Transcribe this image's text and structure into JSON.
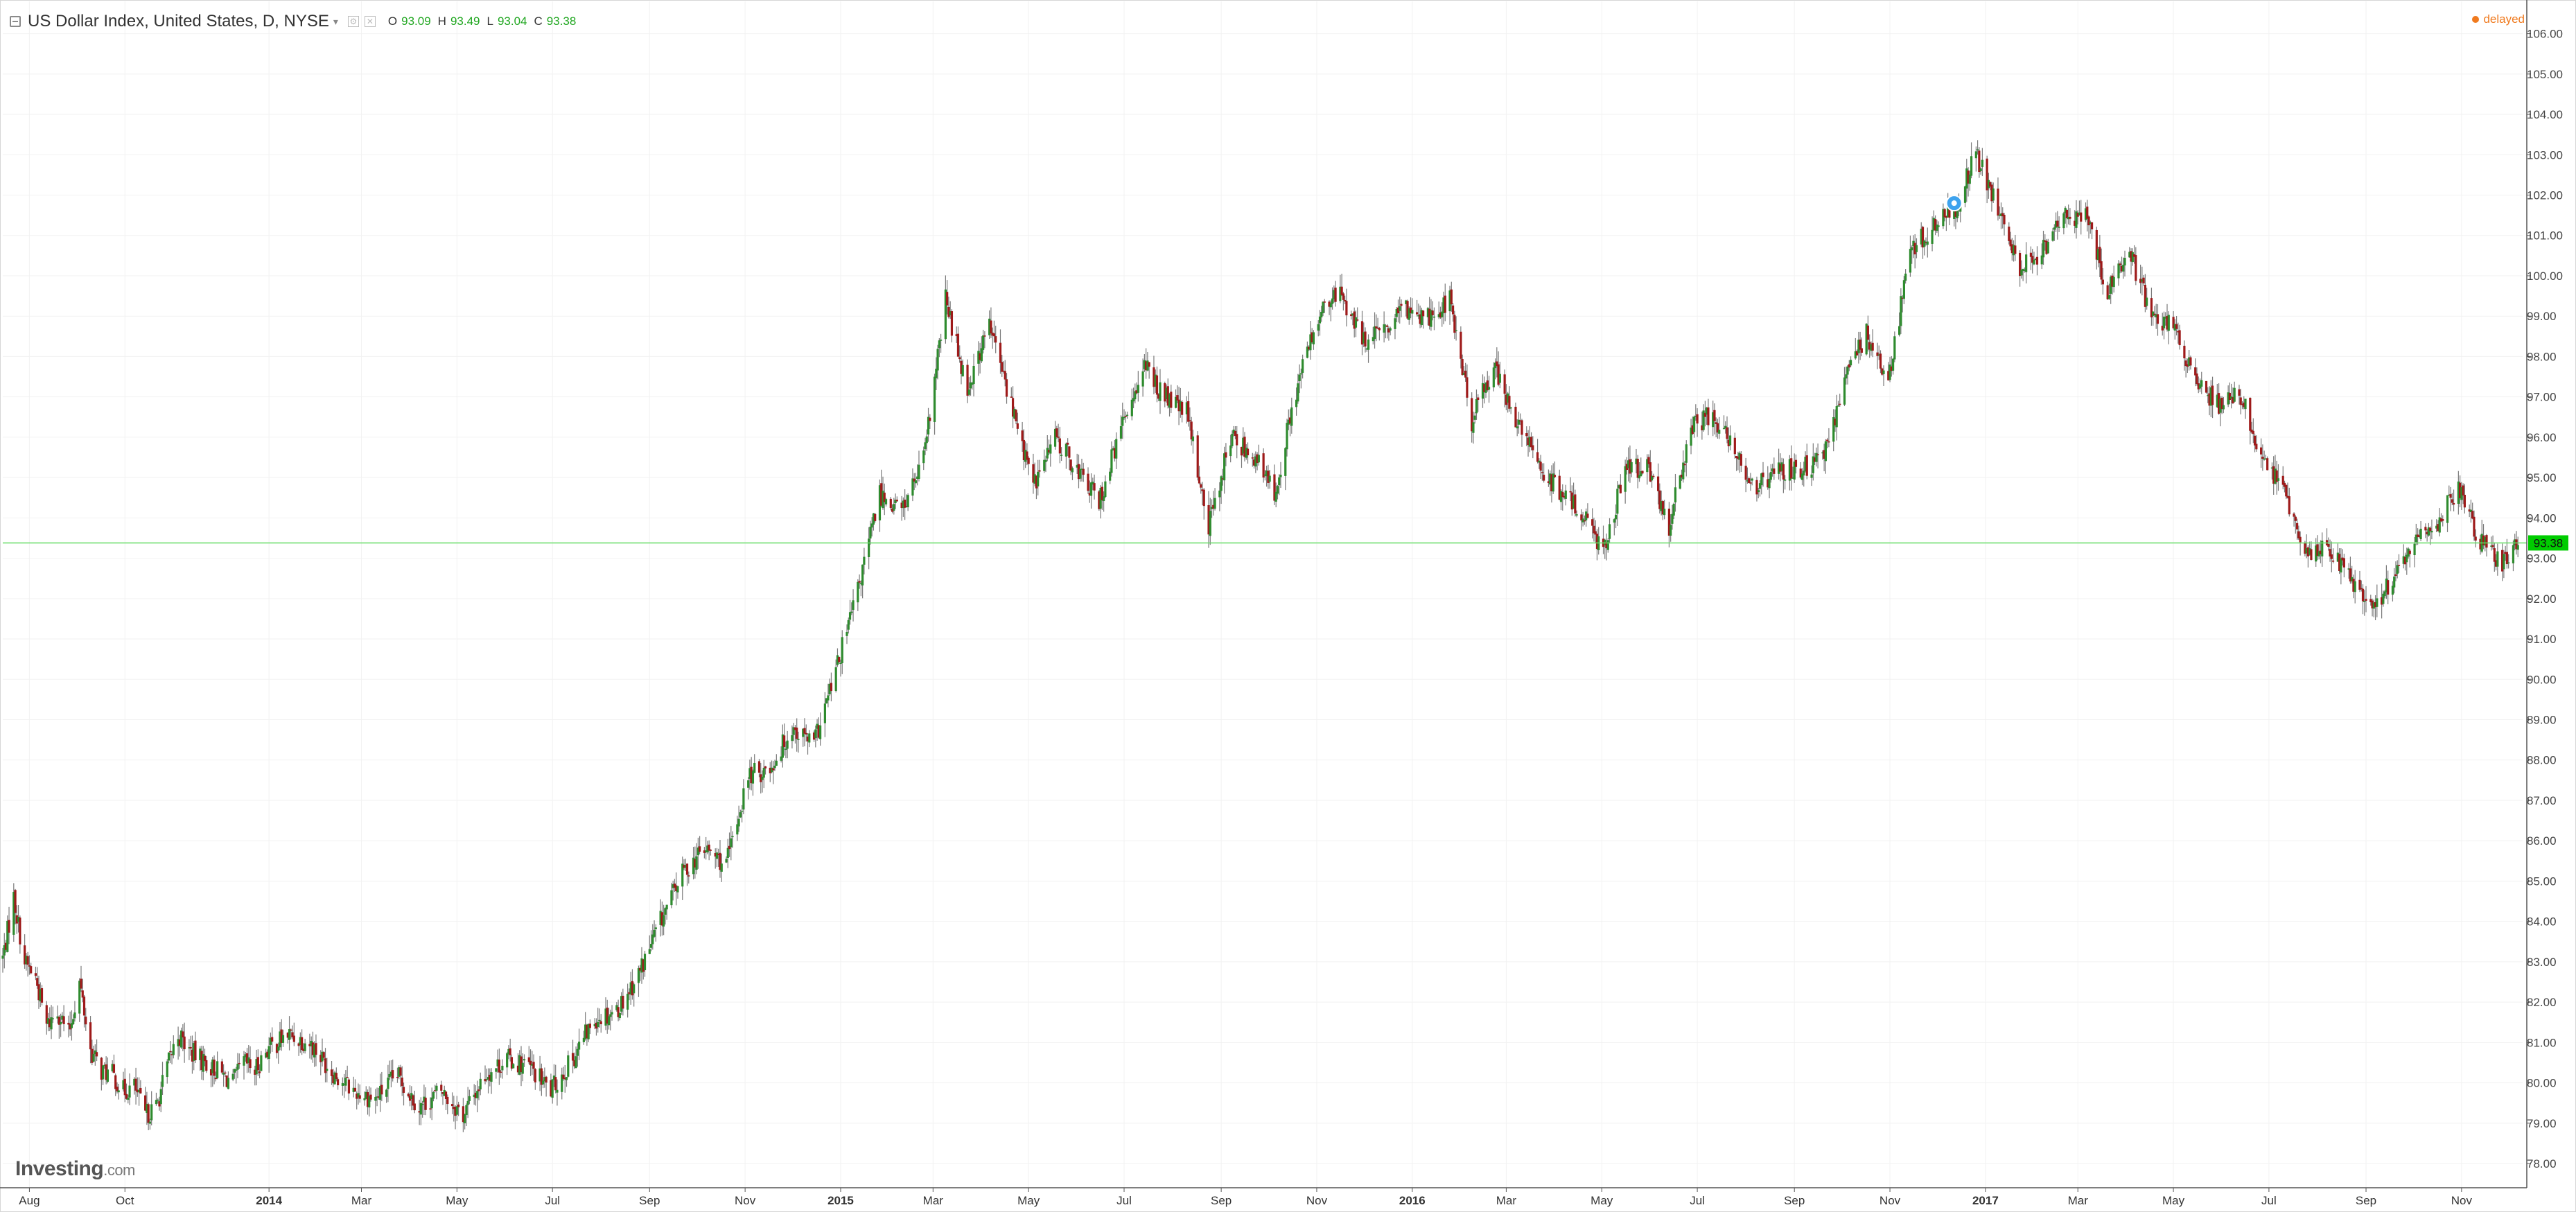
{
  "header": {
    "title": "US Dollar Index, United States, D, NYSE",
    "ohlc": [
      {
        "key": "O",
        "value": "93.09"
      },
      {
        "key": "H",
        "value": "93.49"
      },
      {
        "key": "L",
        "value": "93.04"
      },
      {
        "key": "C",
        "value": "93.38"
      }
    ]
  },
  "status": "delayed",
  "logo": {
    "brand": "Investing",
    "suffix": ".com"
  },
  "colors": {
    "up": "#2e8b2e",
    "down": "#9e1a1a",
    "wick": "#7a7a7a",
    "price_line": "#66dd66",
    "price_label_bg": "#00cc00",
    "grid": "#f2f2f2"
  },
  "chart_data": {
    "type": "line",
    "title": "US Dollar Index, United States, D, NYSE",
    "xlabel": "",
    "ylabel": "",
    "x_range": [
      "2013-07-15",
      "2017-12-10"
    ],
    "ylim": [
      77.4,
      106.8
    ],
    "grid": true,
    "y_ticks": [
      "78.00",
      "79.00",
      "80.00",
      "81.00",
      "82.00",
      "83.00",
      "84.00",
      "85.00",
      "86.00",
      "87.00",
      "88.00",
      "89.00",
      "90.00",
      "91.00",
      "92.00",
      "93.00",
      "94.00",
      "95.00",
      "96.00",
      "97.00",
      "98.00",
      "99.00",
      "100.00",
      "101.00",
      "102.00",
      "103.00",
      "104.00",
      "105.00",
      "106.00"
    ],
    "x_ticks": [
      {
        "label": "Aug",
        "date": "2013-08-01",
        "bold": false
      },
      {
        "label": "Oct",
        "date": "2013-10-01",
        "bold": false
      },
      {
        "label": "2014",
        "date": "2014-01-01",
        "bold": true
      },
      {
        "label": "Mar",
        "date": "2014-03-01",
        "bold": false
      },
      {
        "label": "May",
        "date": "2014-05-01",
        "bold": false
      },
      {
        "label": "Jul",
        "date": "2014-07-01",
        "bold": false
      },
      {
        "label": "Sep",
        "date": "2014-09-01",
        "bold": false
      },
      {
        "label": "Nov",
        "date": "2014-11-01",
        "bold": false
      },
      {
        "label": "2015",
        "date": "2015-01-01",
        "bold": true
      },
      {
        "label": "Mar",
        "date": "2015-03-01",
        "bold": false
      },
      {
        "label": "May",
        "date": "2015-05-01",
        "bold": false
      },
      {
        "label": "Jul",
        "date": "2015-07-01",
        "bold": false
      },
      {
        "label": "Sep",
        "date": "2015-09-01",
        "bold": false
      },
      {
        "label": "Nov",
        "date": "2015-11-01",
        "bold": false
      },
      {
        "label": "2016",
        "date": "2016-01-01",
        "bold": true
      },
      {
        "label": "Mar",
        "date": "2016-03-01",
        "bold": false
      },
      {
        "label": "May",
        "date": "2016-05-01",
        "bold": false
      },
      {
        "label": "Jul",
        "date": "2016-07-01",
        "bold": false
      },
      {
        "label": "Sep",
        "date": "2016-09-01",
        "bold": false
      },
      {
        "label": "Nov",
        "date": "2016-11-01",
        "bold": false
      },
      {
        "label": "2017",
        "date": "2017-01-01",
        "bold": true
      },
      {
        "label": "Mar",
        "date": "2017-03-01",
        "bold": false
      },
      {
        "label": "May",
        "date": "2017-05-01",
        "bold": false
      },
      {
        "label": "Jul",
        "date": "2017-07-01",
        "bold": false
      },
      {
        "label": "Sep",
        "date": "2017-09-01",
        "bold": false
      },
      {
        "label": "Nov",
        "date": "2017-11-01",
        "bold": false
      }
    ],
    "last_price": {
      "value": 93.38,
      "label": "93.38"
    },
    "event_marker": {
      "date": "2016-12-12",
      "value": 101.8
    },
    "series": [
      {
        "close_points": [
          [
            "2013-07-15",
            83.1
          ],
          [
            "2013-07-22",
            84.6
          ],
          [
            "2013-07-29",
            83.0
          ],
          [
            "2013-08-05",
            82.6
          ],
          [
            "2013-08-12",
            81.4
          ],
          [
            "2013-08-19",
            81.8
          ],
          [
            "2013-08-26",
            81.2
          ],
          [
            "2013-09-02",
            82.5
          ],
          [
            "2013-09-09",
            80.8
          ],
          [
            "2013-09-16",
            80.3
          ],
          [
            "2013-09-23",
            80.2
          ],
          [
            "2013-09-30",
            79.8
          ],
          [
            "2013-10-07",
            79.9
          ],
          [
            "2013-10-14",
            79.2
          ],
          [
            "2013-10-21",
            79.4
          ],
          [
            "2013-10-28",
            80.4
          ],
          [
            "2013-11-04",
            81.2
          ],
          [
            "2013-11-11",
            80.8
          ],
          [
            "2013-11-18",
            80.6
          ],
          [
            "2013-11-25",
            80.4
          ],
          [
            "2013-12-02",
            80.2
          ],
          [
            "2013-12-09",
            80.0
          ],
          [
            "2013-12-16",
            80.5
          ],
          [
            "2013-12-23",
            80.3
          ],
          [
            "2013-12-30",
            80.8
          ],
          [
            "2014-01-13",
            81.2
          ],
          [
            "2014-01-27",
            81.0
          ],
          [
            "2014-02-10",
            80.3
          ],
          [
            "2014-02-24",
            79.8
          ],
          [
            "2014-03-10",
            79.6
          ],
          [
            "2014-03-24",
            80.2
          ],
          [
            "2014-04-07",
            79.4
          ],
          [
            "2014-04-21",
            79.8
          ],
          [
            "2014-05-05",
            79.2
          ],
          [
            "2014-05-19",
            80.2
          ],
          [
            "2014-06-02",
            80.6
          ],
          [
            "2014-06-16",
            80.4
          ],
          [
            "2014-06-30",
            79.8
          ],
          [
            "2014-07-14",
            80.6
          ],
          [
            "2014-07-28",
            81.6
          ],
          [
            "2014-08-11",
            81.8
          ],
          [
            "2014-08-25",
            82.7
          ],
          [
            "2014-09-08",
            84.0
          ],
          [
            "2014-09-22",
            85.2
          ],
          [
            "2014-10-06",
            85.8
          ],
          [
            "2014-10-20",
            85.4
          ],
          [
            "2014-11-03",
            87.6
          ],
          [
            "2014-11-17",
            87.8
          ],
          [
            "2014-12-01",
            88.8
          ],
          [
            "2014-12-15",
            88.4
          ],
          [
            "2014-12-29",
            90.2
          ],
          [
            "2015-01-12",
            92.2
          ],
          [
            "2015-01-26",
            94.6
          ],
          [
            "2015-02-09",
            94.2
          ],
          [
            "2015-02-23",
            95.4
          ],
          [
            "2015-03-09",
            99.4
          ],
          [
            "2015-03-23",
            97.2
          ],
          [
            "2015-04-06",
            98.8
          ],
          [
            "2015-04-20",
            96.8
          ],
          [
            "2015-05-04",
            94.8
          ],
          [
            "2015-05-18",
            96.0
          ],
          [
            "2015-06-01",
            95.2
          ],
          [
            "2015-06-15",
            94.4
          ],
          [
            "2015-06-29",
            96.2
          ],
          [
            "2015-07-13",
            97.8
          ],
          [
            "2015-07-27",
            97.0
          ],
          [
            "2015-08-10",
            96.6
          ],
          [
            "2015-08-24",
            93.8
          ],
          [
            "2015-09-07",
            96.0
          ],
          [
            "2015-09-21",
            95.6
          ],
          [
            "2015-10-05",
            94.6
          ],
          [
            "2015-10-19",
            97.2
          ],
          [
            "2015-11-02",
            99.0
          ],
          [
            "2015-11-16",
            99.6
          ],
          [
            "2015-11-30",
            98.4
          ],
          [
            "2015-12-14",
            98.6
          ],
          [
            "2015-12-28",
            99.2
          ],
          [
            "2016-01-11",
            99.0
          ],
          [
            "2016-01-25",
            99.4
          ],
          [
            "2016-02-08",
            96.4
          ],
          [
            "2016-02-22",
            97.8
          ],
          [
            "2016-03-07",
            96.4
          ],
          [
            "2016-03-21",
            95.4
          ],
          [
            "2016-04-04",
            94.6
          ],
          [
            "2016-04-18",
            94.2
          ],
          [
            "2016-05-02",
            93.2
          ],
          [
            "2016-05-16",
            95.2
          ],
          [
            "2016-05-30",
            95.2
          ],
          [
            "2016-06-13",
            93.8
          ],
          [
            "2016-06-27",
            96.2
          ],
          [
            "2016-07-11",
            96.6
          ],
          [
            "2016-07-25",
            95.6
          ],
          [
            "2016-08-08",
            94.8
          ],
          [
            "2016-08-22",
            95.2
          ],
          [
            "2016-09-05",
            95.2
          ],
          [
            "2016-09-19",
            95.4
          ],
          [
            "2016-10-03",
            97.4
          ],
          [
            "2016-10-17",
            98.6
          ],
          [
            "2016-10-31",
            97.4
          ],
          [
            "2016-11-14",
            100.6
          ],
          [
            "2016-11-28",
            101.2
          ],
          [
            "2016-12-12",
            101.6
          ],
          [
            "2016-12-26",
            103.0
          ],
          [
            "2017-01-09",
            101.6
          ],
          [
            "2017-01-23",
            100.2
          ],
          [
            "2017-02-06",
            100.6
          ],
          [
            "2017-02-20",
            101.4
          ],
          [
            "2017-03-06",
            101.6
          ],
          [
            "2017-03-20",
            99.6
          ],
          [
            "2017-04-03",
            100.6
          ],
          [
            "2017-04-17",
            99.0
          ],
          [
            "2017-05-01",
            98.8
          ],
          [
            "2017-05-15",
            97.4
          ],
          [
            "2017-05-29",
            96.8
          ],
          [
            "2017-06-12",
            97.2
          ],
          [
            "2017-06-26",
            95.4
          ],
          [
            "2017-07-10",
            94.8
          ],
          [
            "2017-07-24",
            93.0
          ],
          [
            "2017-08-07",
            93.4
          ],
          [
            "2017-08-21",
            92.6
          ],
          [
            "2017-09-04",
            91.8
          ],
          [
            "2017-09-18",
            92.4
          ],
          [
            "2017-10-02",
            93.4
          ],
          [
            "2017-10-16",
            93.8
          ],
          [
            "2017-10-30",
            94.8
          ],
          [
            "2017-11-13",
            93.4
          ],
          [
            "2017-11-27",
            92.8
          ],
          [
            "2017-12-08",
            93.38
          ]
        ]
      }
    ]
  }
}
